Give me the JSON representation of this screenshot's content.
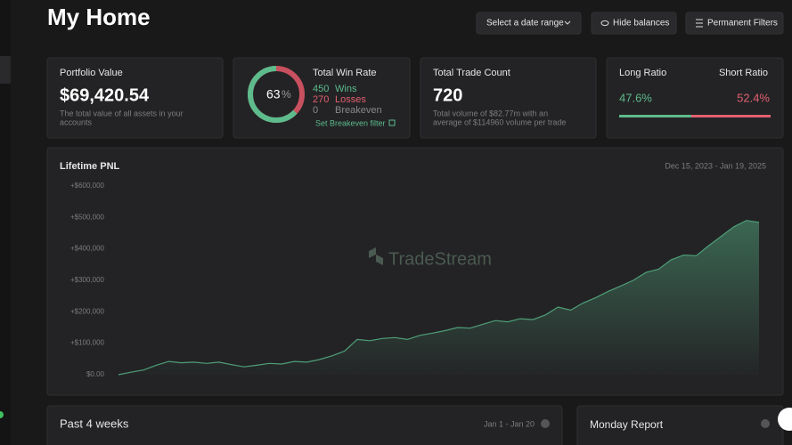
{
  "header": {
    "title": "My Home",
    "buttons": [
      "Select a date range",
      "Hide balances",
      "Permanent Filters"
    ]
  },
  "cards": {
    "portfolio": {
      "title": "Portfolio Value",
      "value": "$69,420.54",
      "note": [
        "The total value of all assets in your",
        "accounts"
      ]
    },
    "win_rate": {
      "title": "Total Win Rate",
      "percent": 63,
      "percent_sign": "%",
      "wins": 450,
      "wins_label": "Wins",
      "losses": 270,
      "losses_label": "Losses",
      "breakeven": 0,
      "breakeven_label": "Breakeven",
      "link": "Set Breakeven filter"
    },
    "trade_count": {
      "title": "Total Trade Count",
      "value": 720,
      "note": [
        "Total volume of $82.77m with an",
        "average of $114960 volume per trade"
      ]
    },
    "ratio": {
      "long_title": "Long Ratio",
      "short_title": "Short Ratio",
      "long": {
        "value": 47.6,
        "label": "47.6%"
      },
      "short": {
        "value": 52.4,
        "label": "52.4%"
      }
    }
  },
  "chart_data": {
    "type": "area",
    "title": "Lifetime PNL",
    "subtitle": "Dec 15, 2023 - Jan 19, 2025",
    "watermark": "TradeStream",
    "color": "#4f9e78",
    "ylim": [
      0,
      625000
    ],
    "yticks": [
      {
        "value": 0,
        "label": "$0.00"
      },
      {
        "value": 100000,
        "label": "+$100,000"
      },
      {
        "value": 200000,
        "label": "+$200,000"
      },
      {
        "value": 300000,
        "label": "+$300,000"
      },
      {
        "value": 400000,
        "label": "+$400,000"
      },
      {
        "value": 500000,
        "label": "+$500,000"
      },
      {
        "value": 600000,
        "label": "+$600,000"
      }
    ],
    "values": [
      0,
      8000,
      15000,
      30000,
      42000,
      38000,
      40000,
      36000,
      40000,
      32000,
      25000,
      30000,
      36000,
      34000,
      42000,
      40000,
      48000,
      60000,
      75000,
      112000,
      108000,
      115000,
      118000,
      112000,
      125000,
      132000,
      140000,
      150000,
      148000,
      160000,
      172000,
      168000,
      178000,
      175000,
      190000,
      215000,
      205000,
      228000,
      245000,
      265000,
      282000,
      300000,
      325000,
      335000,
      365000,
      380000,
      378000,
      410000,
      440000,
      470000,
      490000,
      484000
    ]
  },
  "bottom": {
    "weeks_title": "Past 4 weeks",
    "weeks_range": "Jan 1 - Jan 20",
    "report_title": "Monday Report"
  }
}
